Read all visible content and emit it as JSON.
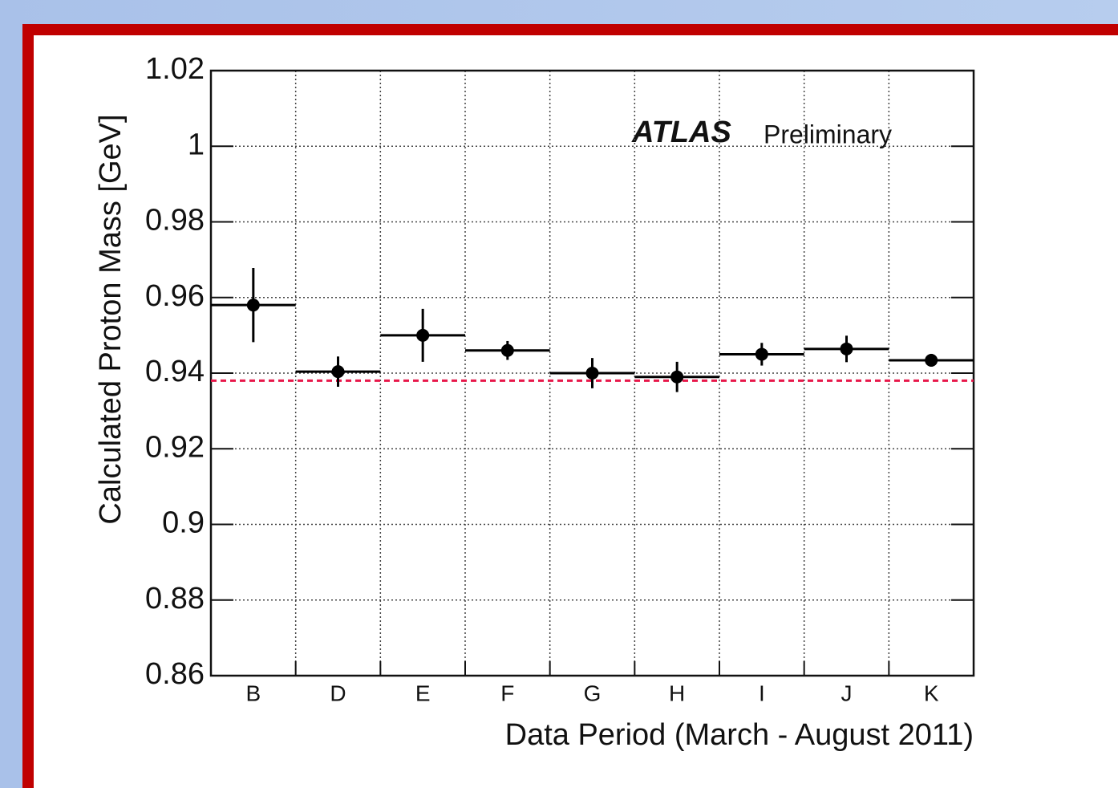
{
  "chart_data": {
    "type": "errorbar",
    "y_label": "Calculated Proton Mass [GeV]",
    "x_label": "Data Period (March - August 2011)",
    "annotation_bold": "ATLAS",
    "annotation": "Preliminary",
    "categories": [
      "B",
      "D",
      "E",
      "F",
      "G",
      "H",
      "I",
      "J",
      "K"
    ],
    "series": [
      {
        "color": "#000000",
        "values": [
          0.958,
          0.9404,
          0.95,
          0.946,
          0.94,
          0.939,
          0.945,
          0.9464,
          0.9434
        ],
        "errors": [
          0.0098,
          0.004,
          0.007,
          0.0025,
          0.004,
          0.004,
          0.003,
          0.0035,
          0.0017
        ]
      }
    ],
    "reference_line": {
      "value": 0.938,
      "color": "#e8174a"
    },
    "ylim": [
      0.86,
      1.02
    ],
    "yticks": [
      0.86,
      0.88,
      0.9,
      0.92,
      0.94,
      0.96,
      0.98,
      1,
      1.02
    ],
    "grid": true
  }
}
